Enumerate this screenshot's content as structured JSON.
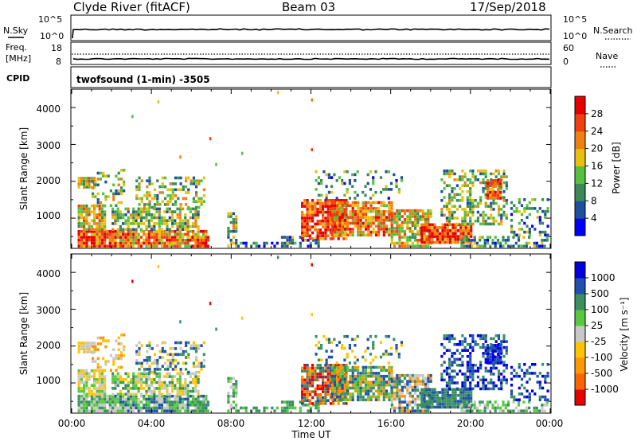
{
  "header": {
    "station": "Clyde River (fitACF)",
    "beam": "Beam 03",
    "date": "17/Sep/2018"
  },
  "nsky_panel": {
    "left_label": "N.Sky",
    "left_ticks": [
      "10^5",
      "10^0"
    ],
    "right_ticks": [
      "10^5",
      "10^0"
    ],
    "right_label": "N.Search"
  },
  "freq_panel": {
    "left_label_1": "Freq.",
    "left_label_2": "[MHz]",
    "left_ticks": [
      "18",
      "8"
    ],
    "right_ticks": [
      "60",
      "0"
    ],
    "right_label": "Nave"
  },
  "cpid_panel": {
    "label": "CPID",
    "text": "twofsound (1-min) -3505"
  },
  "colors": {
    "power": [
      "#0000ff",
      "#1e4fa0",
      "#3a8a58",
      "#58c040",
      "#e8c010",
      "#f08010",
      "#f04010",
      "#e80000"
    ],
    "velocity": [
      "#e80000",
      "#ff6400",
      "#ff9800",
      "#ffc400",
      "#c8c8c8",
      "#58c840",
      "#3a9060",
      "#2050b0",
      "#0000e0"
    ]
  },
  "chart_data": [
    {
      "type": "heatmap",
      "name": "power",
      "ylabel": "Slant Range [km]",
      "ylim": [
        180,
        4500
      ],
      "yticks": [
        "1000",
        "2000",
        "3000",
        "4000"
      ],
      "xlim": [
        0,
        24
      ],
      "colorbar_label": "Power [dB]",
      "colorbar_ticks": [
        "4",
        "8",
        "12",
        "16",
        "20",
        "24",
        "28"
      ],
      "colorbar_range": [
        0,
        32
      ]
    },
    {
      "type": "heatmap",
      "name": "velocity",
      "ylabel": "Slant Range [km]",
      "ylim": [
        180,
        4500
      ],
      "yticks": [
        "1000",
        "2000",
        "3000",
        "4000"
      ],
      "xlim": [
        0,
        24
      ],
      "xlabel": "Time UT",
      "xticks": [
        "00:00",
        "04:00",
        "08:00",
        "12:00",
        "16:00",
        "20:00",
        "00:00"
      ],
      "colorbar_label": "Velocity [m s⁻¹]",
      "colorbar_ticks": [
        "1000",
        "500",
        "100",
        "25",
        "-25",
        "-100",
        "-500",
        "-1000"
      ]
    }
  ]
}
